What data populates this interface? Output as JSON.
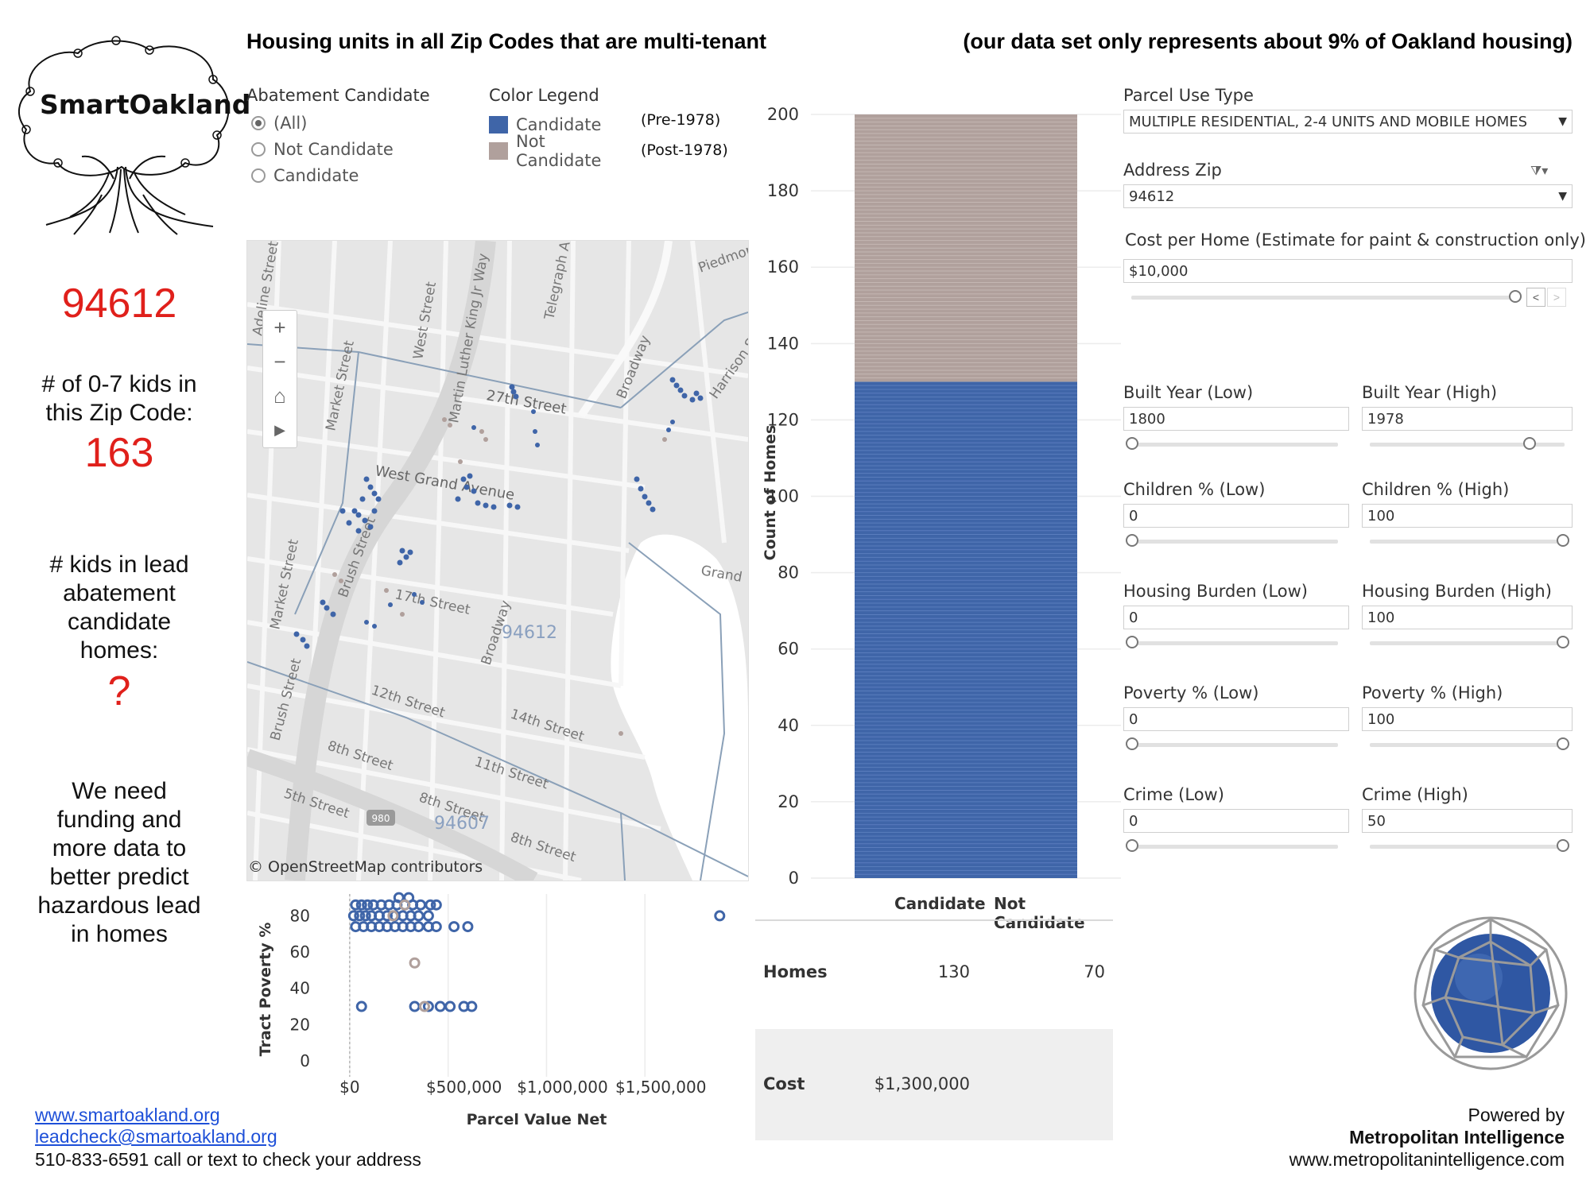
{
  "header": {
    "title_left": "Housing units in all Zip Codes that are multi-tenant",
    "title_right": "(our data set only represents about 9% of Oakland housing)"
  },
  "logo": {
    "text": "SmartOakland"
  },
  "left_panel": {
    "zip": "94612",
    "kids_label": "# of 0-7 kids in this Zip Code:",
    "kids_value": "163",
    "lead_label": "# kids in lead abatement candidate homes:",
    "lead_value": "?",
    "note": "We need funding and more data to better predict hazardous lead in homes"
  },
  "filters": {
    "abatement_title": "Abatement Candidate",
    "abatement_options": [
      "(All)",
      "Not Candidate",
      "Candidate"
    ],
    "legend_title": "Color Legend",
    "legend_items": [
      {
        "label": "Candidate",
        "note": "(Pre-1978)",
        "color": "#3f65a8"
      },
      {
        "label": "Not Candidate",
        "note": "(Post-1978)",
        "color": "#b0a09c"
      }
    ]
  },
  "map": {
    "labels": {
      "adeline": "Adeline Street",
      "west": "West Street",
      "mlk": "Martin Luther King Jr Way",
      "telegraph": "Telegraph A",
      "piedmont": "Piedmon",
      "market1": "Market Street",
      "market2": "Market Street",
      "st27": "27th Street",
      "broadway1": "Broadway",
      "harrison": "Harrison Str",
      "westgrand": "West Grand Avenue",
      "brush1": "Brush Street",
      "brush2": "Brush Street",
      "st17": "17th Street",
      "broadway2": "Broadway",
      "zip94612": "94612",
      "grand": "Grand",
      "st12": "12th Street",
      "st14": "14th Street",
      "st11": "11th Street",
      "st8a": "8th Street",
      "st8b": "8th Street",
      "st8c": "8th Street",
      "st5": "5th Street",
      "zip94607": "94607",
      "i980": "980"
    },
    "attribution": "© OpenStreetMap contributors"
  },
  "bar_chart": {
    "ylabel": "Count of Homes",
    "yticks": [
      "200",
      "180",
      "160",
      "140",
      "120",
      "100",
      "80",
      "60",
      "40",
      "20",
      "0"
    ]
  },
  "scatter": {
    "ylabel": "Tract Poverty %",
    "xlabel": "Parcel Value Net",
    "yticks": [
      "80",
      "60",
      "40",
      "20",
      "0"
    ],
    "xticks": [
      "$0",
      "$500,000",
      "$1,000,000",
      "$1,500,000"
    ]
  },
  "chart_data": [
    {
      "type": "bar",
      "title": "",
      "ylabel": "Count of Homes",
      "categories": [
        "Homes"
      ],
      "series": [
        {
          "name": "Candidate",
          "values": [
            130
          ]
        },
        {
          "name": "Not Candidate",
          "values": [
            70
          ]
        }
      ],
      "ylim": [
        0,
        205
      ],
      "stacked": true
    },
    {
      "type": "scatter",
      "xlabel": "Parcel Value Net",
      "ylabel": "Tract Poverty %",
      "xlim": [
        -40000,
        2000000
      ],
      "ylim": [
        0,
        92
      ],
      "series": [
        {
          "name": "Candidate",
          "points": [
            [
              30000,
              86
            ],
            [
              60000,
              86
            ],
            [
              90000,
              86
            ],
            [
              120000,
              86
            ],
            [
              160000,
              86
            ],
            [
              200000,
              86
            ],
            [
              240000,
              86
            ],
            [
              280000,
              86
            ],
            [
              320000,
              86
            ],
            [
              360000,
              86
            ],
            [
              410000,
              86
            ],
            [
              440000,
              86
            ],
            [
              20000,
              80
            ],
            [
              50000,
              80
            ],
            [
              80000,
              80
            ],
            [
              110000,
              80
            ],
            [
              150000,
              80
            ],
            [
              190000,
              80
            ],
            [
              230000,
              80
            ],
            [
              270000,
              80
            ],
            [
              310000,
              80
            ],
            [
              350000,
              80
            ],
            [
              400000,
              80
            ],
            [
              30000,
              74
            ],
            [
              70000,
              74
            ],
            [
              110000,
              74
            ],
            [
              150000,
              74
            ],
            [
              190000,
              74
            ],
            [
              230000,
              74
            ],
            [
              270000,
              74
            ],
            [
              310000,
              74
            ],
            [
              350000,
              74
            ],
            [
              400000,
              74
            ],
            [
              440000,
              74
            ],
            [
              530000,
              74
            ],
            [
              600000,
              74
            ],
            [
              250000,
              90
            ],
            [
              300000,
              90
            ],
            [
              1880000,
              80
            ],
            [
              60000,
              30
            ],
            [
              330000,
              30
            ],
            [
              400000,
              30
            ],
            [
              460000,
              30
            ],
            [
              510000,
              30
            ],
            [
              580000,
              30
            ],
            [
              620000,
              30
            ]
          ]
        },
        {
          "name": "Not Candidate",
          "points": [
            [
              330000,
              54
            ],
            [
              280000,
              86
            ],
            [
              380000,
              30
            ],
            [
              220000,
              80
            ]
          ]
        }
      ]
    }
  ],
  "table": {
    "col1": "Candidate",
    "col2": "Not Candidate",
    "row1_label": "Homes",
    "row1_cand": "130",
    "row1_not": "70",
    "row2_label": "Cost",
    "row2_cand": "$1,300,000",
    "row2_not": ""
  },
  "right_panel": {
    "parcel_label": "Parcel Use Type",
    "parcel_value": "MULTIPLE RESIDENTIAL, 2-4 UNITS AND MOBILE HOMES",
    "zip_label": "Address Zip",
    "zip_value": "94612",
    "cost_label": "Cost per Home (Estimate for paint & construction only)",
    "cost_value": "$10,000",
    "built_low_label": "Built Year (Low)",
    "built_low": "1800",
    "built_high_label": "Built Year (High)",
    "built_high": "1978",
    "children_low_label": "Children % (Low)",
    "children_low": "0",
    "children_high_label": "Children % (High)",
    "children_high": "100",
    "housing_low_label": "Housing Burden (Low)",
    "housing_low": "0",
    "housing_high_label": "Housing Burden (High)",
    "housing_high": "100",
    "poverty_low_label": "Poverty % (Low)",
    "poverty_low": "0",
    "poverty_high_label": "Poverty % (High)",
    "poverty_high": "100",
    "crime_low_label": "Crime (Low)",
    "crime_low": "0",
    "crime_high_label": "Crime (High)",
    "crime_high": "50"
  },
  "footer": {
    "website": "www.smartoakland.org",
    "email": "leadcheck@smartoakland.org",
    "phone": "510-833-6591 call or text to check your address",
    "powered_by": "Powered by",
    "company": "Metropolitan Intelligence",
    "company_url": "www.metropolitanintelligence.com"
  }
}
